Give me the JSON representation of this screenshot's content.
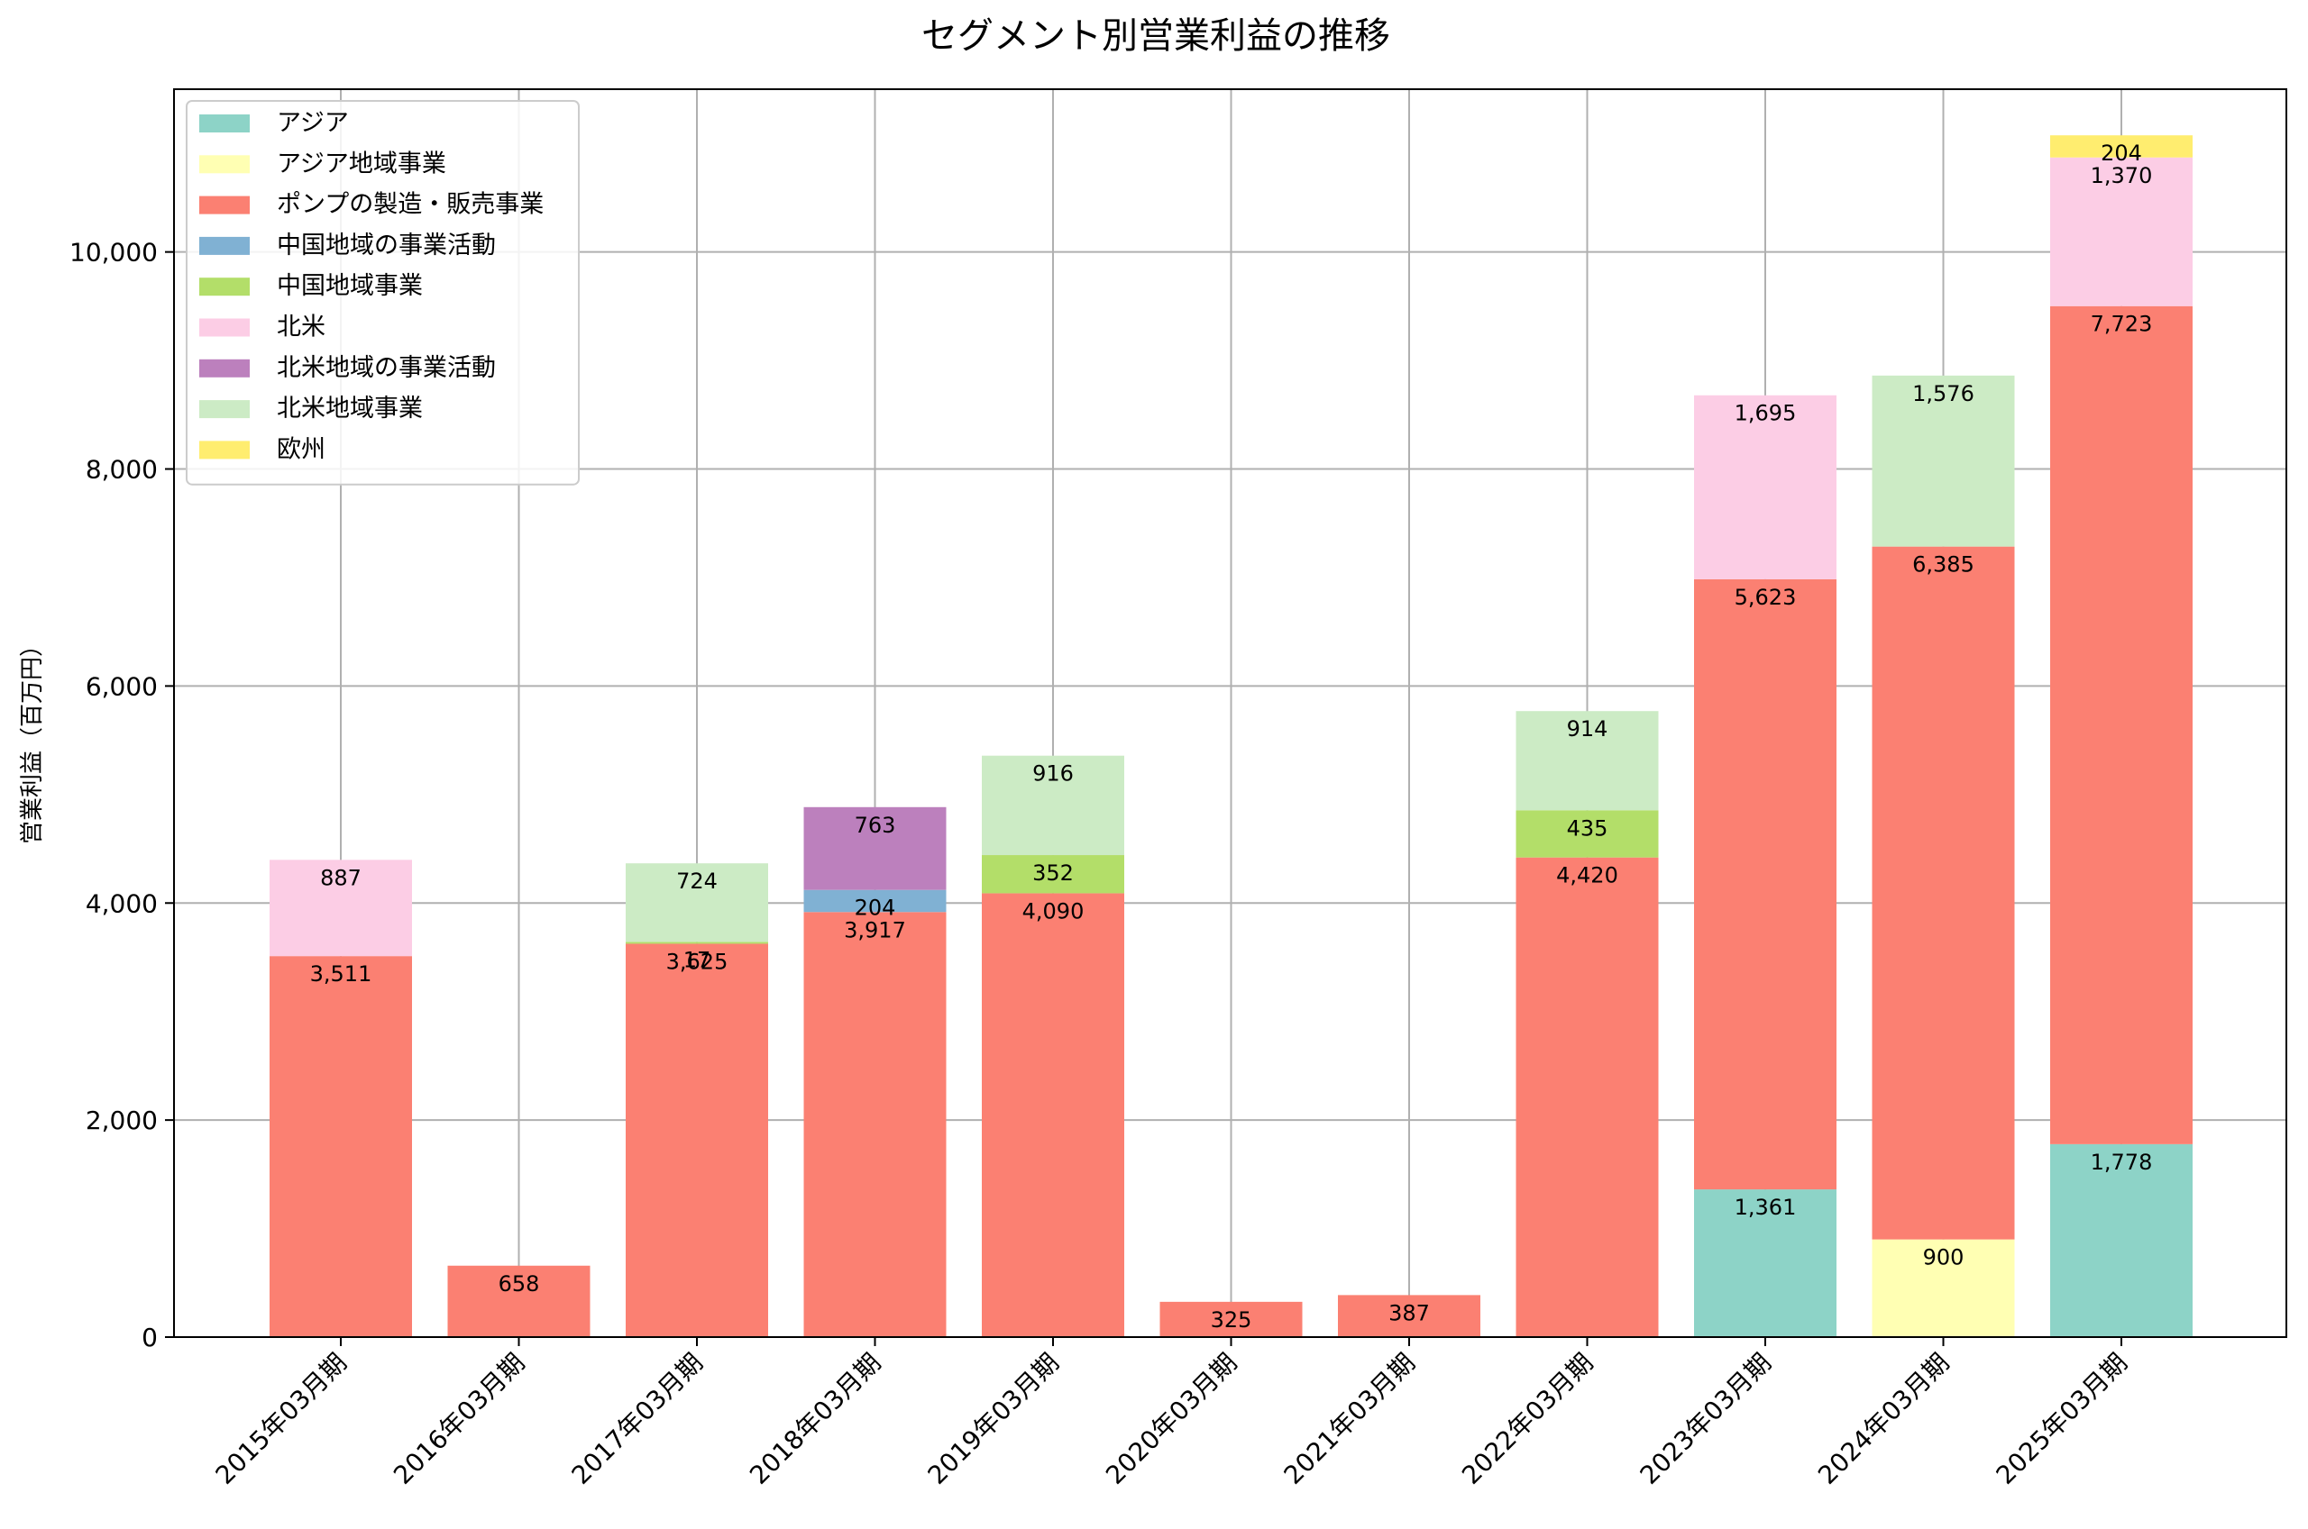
{
  "chart_data": {
    "type": "bar",
    "stacked": true,
    "title": "セグメント別営業利益の推移",
    "xlabel": "",
    "ylabel": "営業利益（百万円）",
    "ylim": [
      0,
      11500
    ],
    "yticks": [
      0,
      2000,
      4000,
      6000,
      8000,
      10000
    ],
    "ytick_labels": [
      "0",
      "2,000",
      "4,000",
      "6,000",
      "8,000",
      "10,000"
    ],
    "grid": true,
    "legend_position": "top-left",
    "categories": [
      "2015年03月期",
      "2016年03月期",
      "2017年03月期",
      "2018年03月期",
      "2019年03月期",
      "2020年03月期",
      "2021年03月期",
      "2022年03月期",
      "2023年03月期",
      "2024年03月期",
      "2025年03月期"
    ],
    "series": [
      {
        "name": "アジア",
        "color": "#8dd3c7",
        "values": [
          0,
          0,
          0,
          0,
          0,
          0,
          0,
          0,
          1361,
          0,
          1778
        ]
      },
      {
        "name": "アジア地域事業",
        "color": "#ffffb3",
        "values": [
          0,
          0,
          0,
          0,
          0,
          0,
          0,
          0,
          0,
          900,
          0
        ]
      },
      {
        "name": "ポンプの製造・販売事業",
        "color": "#fb8072",
        "values": [
          3511,
          658,
          3625,
          3917,
          4090,
          325,
          387,
          4420,
          5623,
          6385,
          7723
        ]
      },
      {
        "name": "中国地域の事業活動",
        "color": "#80b1d3",
        "values": [
          0,
          0,
          0,
          204,
          0,
          0,
          0,
          0,
          0,
          0,
          0
        ]
      },
      {
        "name": "中国地域事業",
        "color": "#b3de69",
        "values": [
          0,
          0,
          17,
          0,
          352,
          0,
          0,
          435,
          0,
          0,
          0
        ]
      },
      {
        "name": "北米",
        "color": "#fccde5",
        "values": [
          887,
          0,
          0,
          0,
          0,
          0,
          0,
          0,
          1695,
          0,
          1370
        ]
      },
      {
        "name": "北米地域の事業活動",
        "color": "#bc80bd",
        "values": [
          0,
          0,
          0,
          763,
          0,
          0,
          0,
          0,
          0,
          0,
          0
        ]
      },
      {
        "name": "北米地域事業",
        "color": "#ccebc5",
        "values": [
          0,
          0,
          724,
          0,
          916,
          0,
          0,
          914,
          0,
          1576,
          0
        ]
      },
      {
        "name": "欧州",
        "color": "#ffed6f",
        "values": [
          0,
          0,
          0,
          0,
          0,
          0,
          0,
          0,
          0,
          0,
          204
        ]
      }
    ]
  }
}
